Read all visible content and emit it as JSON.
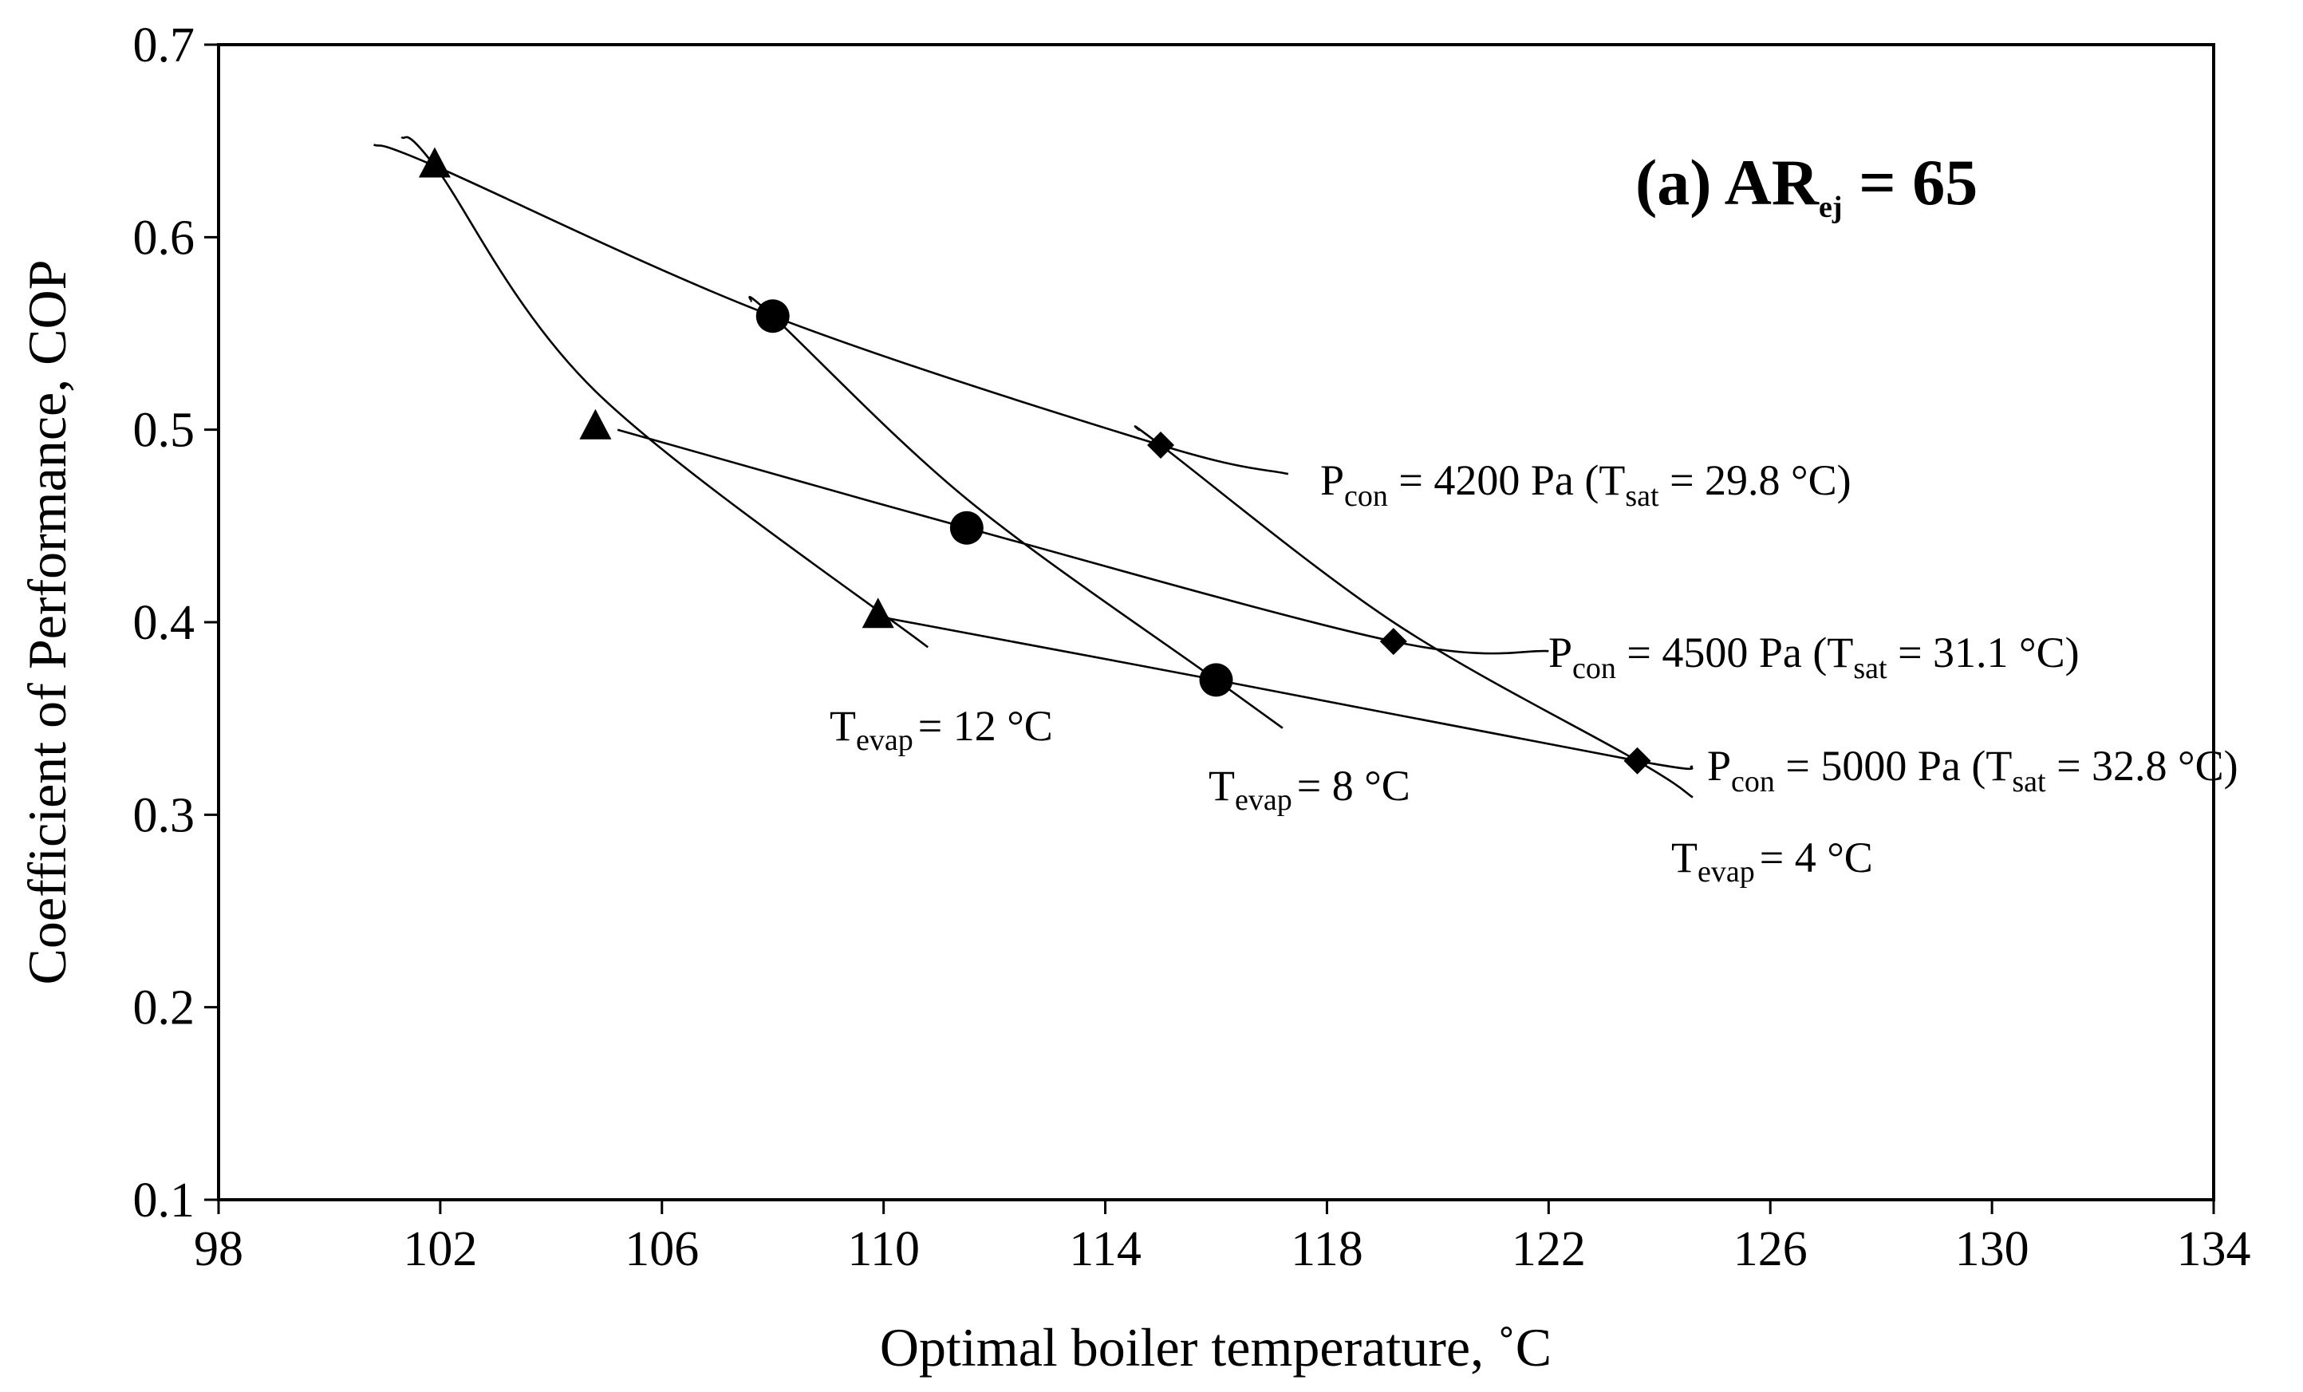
{
  "chart_data": {
    "type": "line",
    "title": "(a)  AR",
    "title_sub": "ej",
    "title_suffix": " = 65",
    "xlabel": "Optimal boiler temperature, ˚C",
    "ylabel": "Coefficient of Performance, COP",
    "xlim": [
      98,
      134
    ],
    "ylim": [
      0.1,
      0.7
    ],
    "x_ticks": [
      "98",
      "102",
      "106",
      "110",
      "114",
      "118",
      "122",
      "126",
      "130",
      "134"
    ],
    "y_ticks": [
      "0.1",
      "0.2",
      "0.3",
      "0.4",
      "0.5",
      "0.6",
      "0.7"
    ],
    "grid": false,
    "markers": [
      {
        "name": "Tevap = 12 °C",
        "shape": "triangle",
        "points": [
          [
            101.9,
            0.637
          ],
          [
            104.8,
            0.501
          ],
          [
            109.9,
            0.403
          ]
        ]
      },
      {
        "name": "Tevap = 8 °C",
        "shape": "circle",
        "points": [
          [
            108.0,
            0.559
          ],
          [
            111.5,
            0.449
          ],
          [
            116.0,
            0.37
          ]
        ]
      },
      {
        "name": "Tevap = 4 °C",
        "shape": "diamond",
        "points": [
          [
            115.0,
            0.492
          ],
          [
            119.2,
            0.39
          ],
          [
            123.6,
            0.328
          ]
        ]
      }
    ],
    "pressure_curves": [
      {
        "name": "Pcon = 4200 Pa (Tsat = 29.8 °C)",
        "points": [
          [
            100.8,
            0.648
          ],
          [
            101.9,
            0.637
          ],
          [
            108.0,
            0.559
          ],
          [
            115.0,
            0.492
          ],
          [
            117.3,
            0.477
          ]
        ]
      },
      {
        "name": "Pcon = 4500 Pa (Tsat = 31.1 °C)",
        "points": [
          [
            105.2,
            0.5
          ],
          [
            111.5,
            0.449
          ],
          [
            119.2,
            0.39
          ],
          [
            122.0,
            0.385
          ]
        ]
      },
      {
        "name": "Pcon = 5000 Pa (Tsat = 32.8 °C)",
        "points": [
          [
            109.9,
            0.403
          ],
          [
            116.0,
            0.37
          ],
          [
            123.6,
            0.328
          ],
          [
            124.6,
            0.325
          ]
        ]
      }
    ],
    "evap_curves": [
      {
        "name": "Tevap = 12 °C",
        "points": [
          [
            101.3,
            0.652
          ],
          [
            101.9,
            0.637
          ],
          [
            104.8,
            0.52
          ],
          [
            110.8,
            0.387
          ]
        ]
      },
      {
        "name": "Tevap = 8 °C",
        "points": [
          [
            107.6,
            0.567
          ],
          [
            108.0,
            0.559
          ],
          [
            111.5,
            0.464
          ],
          [
            116.0,
            0.37
          ],
          [
            117.2,
            0.345
          ]
        ]
      },
      {
        "name": "Tevap = 4 °C",
        "points": [
          [
            114.6,
            0.5
          ],
          [
            115.0,
            0.492
          ],
          [
            119.2,
            0.4
          ],
          [
            123.6,
            0.328
          ],
          [
            124.6,
            0.309
          ]
        ]
      }
    ],
    "curve_labels": {
      "p4200": {
        "prefix": "P",
        "prefix_sub": "con",
        "middle": " = 4200 Pa (T",
        "middle_sub": "sat",
        "suffix": " = 29.8 °C)"
      },
      "p4500": {
        "prefix": "P",
        "prefix_sub": "con",
        "middle": " = 4500 Pa (T",
        "middle_sub": "sat",
        "suffix": " = 31.1 °C)"
      },
      "p5000": {
        "prefix": "P",
        "prefix_sub": "con",
        "middle": " = 5000 Pa (T",
        "middle_sub": "sat",
        "suffix": " = 32.8 °C)"
      },
      "t12": {
        "prefix": "T",
        "prefix_sub": "evap",
        "suffix": "= 12 °C"
      },
      "t8": {
        "prefix": "T",
        "prefix_sub": "evap",
        "suffix": "= 8 °C"
      },
      "t4": {
        "prefix": "T",
        "prefix_sub": "evap",
        "suffix": "= 4 °C"
      }
    }
  }
}
